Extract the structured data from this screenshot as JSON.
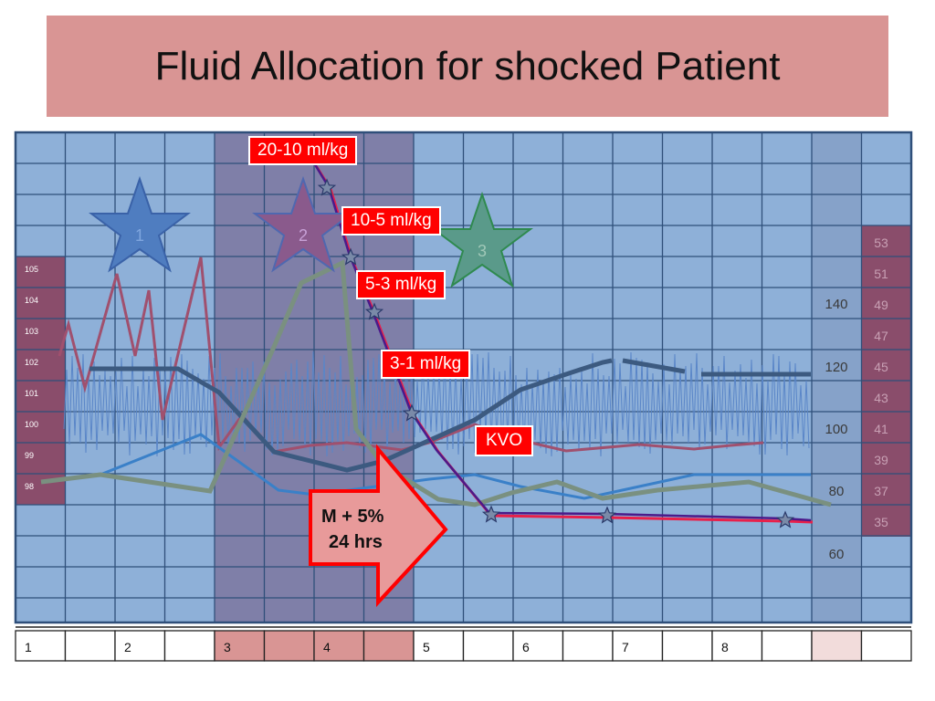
{
  "title": "Fluid Allocation for shocked Patient",
  "left_scale": [
    "105",
    "104",
    "103",
    "102",
    "101",
    "100",
    "99",
    "98"
  ],
  "right_scale_outer": [
    "53",
    "51",
    "49",
    "47",
    "45",
    "43",
    "41",
    "39",
    "37",
    "35"
  ],
  "right_scale_inner": [
    "140",
    "120",
    "100",
    "80",
    "60"
  ],
  "stars": [
    "1",
    "2",
    "3"
  ],
  "fluid_labels": [
    "20-10 ml/kg",
    "10-5 ml/kg",
    "5-3 ml/kg",
    "3-1 ml/kg",
    "KVO"
  ],
  "arrow": {
    "line1": "M + 5%",
    "line2": "24 hrs"
  },
  "bottom_row": [
    "1",
    "",
    "2",
    "",
    "3",
    "",
    "4",
    "",
    "5",
    "",
    "6",
    "",
    "7",
    "",
    "8",
    "",
    "",
    ""
  ],
  "colors": {
    "title_bg": "#d99594",
    "grid_bg": "#8eb0d8",
    "shaded_columns": "#7f7fa8",
    "scale_box": "#8a4d6b",
    "label_bg": "#ff0000",
    "arrow_fill": "#e89a9a",
    "arrow_stroke": "#ff0000"
  }
}
